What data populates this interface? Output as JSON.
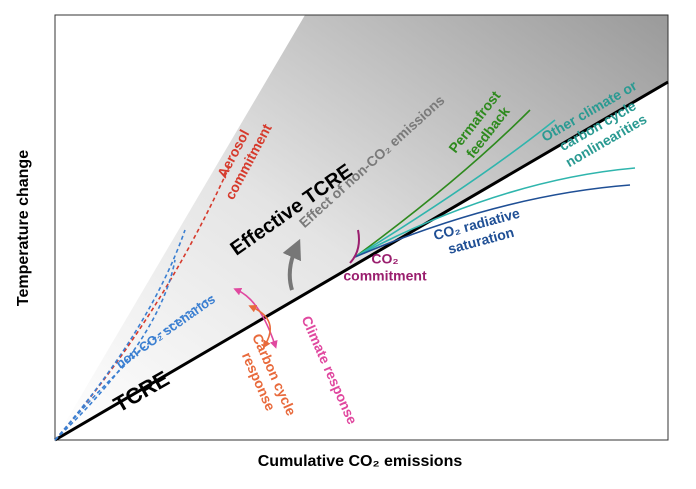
{
  "axes": {
    "y_label": "Temperature change",
    "x_label": "Cumulative CO₂ emissions"
  },
  "labels": {
    "tcre": "TCRE",
    "effective_tcre": "Effective TCRE",
    "effect_non_co2": "Effect of non-CO₂ emissions",
    "aerosol": [
      "Aerosol",
      "commitment"
    ],
    "permafrost": [
      "Permafrost",
      "feedback"
    ],
    "other": [
      "Other climate or",
      "carbon cycle",
      "nonlinearities"
    ],
    "saturation": [
      "CO₂ radiative",
      "saturation"
    ],
    "commitment": [
      "CO₂",
      "commitment"
    ],
    "non_co2_scenarios": "non-CO₂ scenarios",
    "climate_response": "Climate response",
    "carbon_cycle": [
      "Carbon cycle",
      "response"
    ]
  }
}
